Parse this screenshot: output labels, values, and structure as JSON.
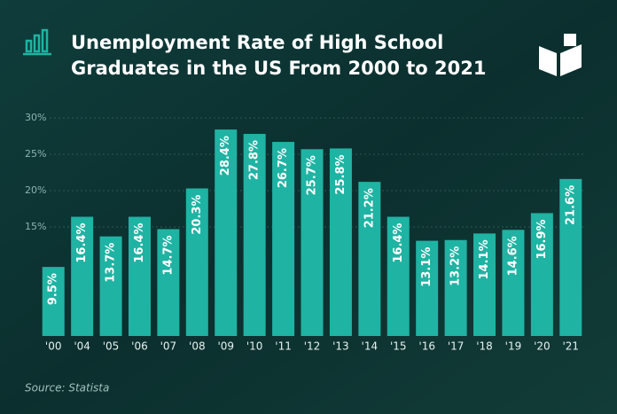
{
  "chart_data": {
    "type": "bar",
    "title": [
      "Unemployment Rate of High School",
      "Graduates in the US From 2000 to 2021"
    ],
    "categories": [
      "'00",
      "'04",
      "'05",
      "'06",
      "'07",
      "'08",
      "'09",
      "'10",
      "'11",
      "'12",
      "'13",
      "'14",
      "'15",
      "'16",
      "'17",
      "'18",
      "'19",
      "'20",
      "'21"
    ],
    "values": [
      9.5,
      16.4,
      13.7,
      16.4,
      14.7,
      20.3,
      28.4,
      27.8,
      26.7,
      25.7,
      25.8,
      21.2,
      16.4,
      13.1,
      13.2,
      14.1,
      14.6,
      16.9,
      21.6
    ],
    "value_labels": [
      "9.5%",
      "16.4%",
      "13.7%",
      "16.4%",
      "14.7%",
      "20.3%",
      "28.4%",
      "27.8%",
      "26.7%",
      "25.7%",
      "25.8%",
      "21.2%",
      "16.4%",
      "13.1%",
      "13.2%",
      "14.1%",
      "14.6%",
      "16.9%",
      "21.6%"
    ],
    "color": "#1fb3a3",
    "ylim": [
      0,
      30
    ],
    "yticks": [
      {
        "value": 15,
        "label": "15%"
      },
      {
        "value": 20,
        "label": "20%"
      },
      {
        "value": 25,
        "label": "25%"
      },
      {
        "value": 30,
        "label": "30%"
      }
    ],
    "grid": true,
    "source": "Source: Statista"
  }
}
